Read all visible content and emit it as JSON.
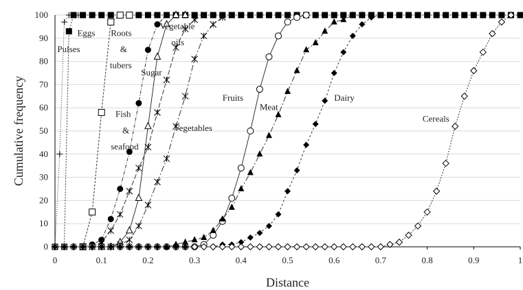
{
  "chart_data": {
    "type": "line",
    "xlabel": "Distance",
    "ylabel": "Cumulative frequency",
    "xlim": [
      0,
      1
    ],
    "ylim": [
      0,
      100
    ],
    "x_ticks": [
      0,
      0.1,
      0.2,
      0.3,
      0.4,
      0.5,
      0.6,
      0.7,
      0.8,
      0.9,
      1
    ],
    "x_tick_labels": [
      "0",
      "0.1",
      "0.2",
      "0.3",
      "0.4",
      "0.5",
      "0.6",
      "0.7",
      "0.8",
      "0.9",
      "1"
    ],
    "y_ticks": [
      0,
      10,
      20,
      30,
      40,
      50,
      60,
      70,
      80,
      90,
      100
    ],
    "y_tick_labels": [
      "0",
      "10",
      "20",
      "30",
      "40",
      "50",
      "60",
      "70",
      "80",
      "90",
      "100"
    ],
    "grid": "horizontal",
    "legend": "inline labels",
    "series": [
      {
        "name": "Pulses",
        "marker": "plus",
        "dash": "1,2",
        "points": [
          [
            0,
            0
          ],
          [
            0.01,
            40
          ],
          [
            0.02,
            97
          ],
          [
            0.03,
            100
          ],
          [
            0.04,
            100
          ],
          [
            0.05,
            100
          ],
          [
            0.06,
            100
          ]
        ]
      },
      {
        "name": "Eggs",
        "marker": "filled-square",
        "dash": "2,2",
        "points": [
          [
            0,
            0
          ],
          [
            0.02,
            0
          ],
          [
            0.03,
            93
          ],
          [
            0.04,
            100
          ],
          [
            0.06,
            100
          ],
          [
            0.08,
            100
          ],
          [
            0.1,
            100
          ],
          [
            0.12,
            100
          ],
          [
            0.14,
            100
          ],
          [
            0.16,
            100
          ],
          [
            0.18,
            100
          ],
          [
            0.2,
            100
          ],
          [
            0.22,
            100
          ],
          [
            0.24,
            100
          ],
          [
            0.26,
            100
          ],
          [
            0.28,
            100
          ],
          [
            0.3,
            100
          ],
          [
            0.32,
            100
          ],
          [
            0.34,
            100
          ],
          [
            0.36,
            100
          ],
          [
            0.38,
            100
          ],
          [
            0.4,
            100
          ],
          [
            0.42,
            100
          ],
          [
            0.44,
            100
          ],
          [
            0.46,
            100
          ],
          [
            0.48,
            100
          ],
          [
            0.5,
            100
          ],
          [
            0.52,
            100
          ],
          [
            0.54,
            100
          ],
          [
            0.56,
            100
          ],
          [
            0.58,
            100
          ],
          [
            0.6,
            100
          ],
          [
            0.62,
            100
          ],
          [
            0.64,
            100
          ],
          [
            0.66,
            100
          ],
          [
            0.68,
            100
          ],
          [
            0.7,
            100
          ],
          [
            0.72,
            100
          ],
          [
            0.74,
            100
          ],
          [
            0.76,
            100
          ],
          [
            0.78,
            100
          ],
          [
            0.8,
            100
          ],
          [
            0.82,
            100
          ],
          [
            0.84,
            100
          ],
          [
            0.86,
            100
          ],
          [
            0.88,
            100
          ],
          [
            0.9,
            100
          ],
          [
            0.92,
            100
          ],
          [
            0.94,
            100
          ],
          [
            0.96,
            100
          ],
          [
            0.98,
            100
          ],
          [
            1,
            100
          ]
        ]
      },
      {
        "name": "Roots & tubers",
        "marker": "open-square",
        "dash": "3,2",
        "points": [
          [
            0.06,
            0
          ],
          [
            0.08,
            15
          ],
          [
            0.1,
            58
          ],
          [
            0.12,
            97
          ],
          [
            0.14,
            100
          ],
          [
            0.16,
            100
          ]
        ]
      },
      {
        "name": "Sugar",
        "marker": "filled-circle",
        "dash": "5,2,1,2",
        "points": [
          [
            0.06,
            0
          ],
          [
            0.08,
            1
          ],
          [
            0.1,
            3
          ],
          [
            0.12,
            12
          ],
          [
            0.14,
            25
          ],
          [
            0.16,
            41
          ],
          [
            0.18,
            62
          ],
          [
            0.2,
            85
          ],
          [
            0.22,
            96
          ],
          [
            0.24,
            100
          ],
          [
            0.26,
            100
          ]
        ]
      },
      {
        "name": "Fish & seafood",
        "marker": "open-triangle",
        "dash": "",
        "points": [
          [
            0.1,
            0
          ],
          [
            0.12,
            0
          ],
          [
            0.14,
            2
          ],
          [
            0.16,
            7
          ],
          [
            0.18,
            21
          ],
          [
            0.2,
            52
          ],
          [
            0.22,
            82
          ],
          [
            0.24,
            96
          ],
          [
            0.26,
            100
          ],
          [
            0.28,
            100
          ]
        ]
      },
      {
        "name": "Vegetable oils",
        "marker": "star",
        "dash": "7,3",
        "points": [
          [
            0.08,
            0
          ],
          [
            0.1,
            2
          ],
          [
            0.12,
            7
          ],
          [
            0.14,
            14
          ],
          [
            0.16,
            24
          ],
          [
            0.18,
            34
          ],
          [
            0.2,
            43
          ],
          [
            0.22,
            58
          ],
          [
            0.24,
            72
          ],
          [
            0.26,
            86
          ],
          [
            0.28,
            94
          ],
          [
            0.3,
            98
          ],
          [
            0.32,
            100
          ]
        ]
      },
      {
        "name": "Vegetables",
        "marker": "star",
        "dash": "9,3,2,3",
        "points": [
          [
            0.1,
            0
          ],
          [
            0.12,
            0
          ],
          [
            0.14,
            1
          ],
          [
            0.16,
            3
          ],
          [
            0.18,
            9
          ],
          [
            0.2,
            18
          ],
          [
            0.22,
            28
          ],
          [
            0.24,
            38
          ],
          [
            0.26,
            52
          ],
          [
            0.28,
            65
          ],
          [
            0.3,
            81
          ],
          [
            0.32,
            91
          ],
          [
            0.34,
            96
          ],
          [
            0.36,
            99
          ],
          [
            0.38,
            100
          ]
        ]
      },
      {
        "name": "Fruits",
        "marker": "open-circle",
        "dash": "",
        "points": [
          [
            0,
            0
          ],
          [
            0.02,
            0
          ],
          [
            0.04,
            0
          ],
          [
            0.06,
            0
          ],
          [
            0.08,
            0
          ],
          [
            0.1,
            0
          ],
          [
            0.12,
            0
          ],
          [
            0.14,
            0
          ],
          [
            0.16,
            0
          ],
          [
            0.18,
            0
          ],
          [
            0.2,
            0
          ],
          [
            0.22,
            0
          ],
          [
            0.24,
            0
          ],
          [
            0.26,
            0
          ],
          [
            0.28,
            0
          ],
          [
            0.3,
            0
          ],
          [
            0.32,
            1
          ],
          [
            0.34,
            5
          ],
          [
            0.36,
            11
          ],
          [
            0.38,
            21
          ],
          [
            0.4,
            34
          ],
          [
            0.42,
            50
          ],
          [
            0.44,
            68
          ],
          [
            0.46,
            82
          ],
          [
            0.48,
            91
          ],
          [
            0.5,
            97
          ],
          [
            0.52,
            99
          ],
          [
            0.54,
            100
          ]
        ]
      },
      {
        "name": "Meat",
        "marker": "filled-triangle",
        "dash": "8,3,2,3",
        "points": [
          [
            0.24,
            0
          ],
          [
            0.26,
            1
          ],
          [
            0.28,
            2
          ],
          [
            0.3,
            3
          ],
          [
            0.32,
            4
          ],
          [
            0.34,
            7
          ],
          [
            0.36,
            12
          ],
          [
            0.38,
            17
          ],
          [
            0.4,
            25
          ],
          [
            0.42,
            32
          ],
          [
            0.44,
            40
          ],
          [
            0.46,
            48
          ],
          [
            0.48,
            57
          ],
          [
            0.5,
            67
          ],
          [
            0.52,
            76
          ],
          [
            0.54,
            85
          ],
          [
            0.56,
            88
          ],
          [
            0.58,
            93
          ],
          [
            0.6,
            97
          ],
          [
            0.62,
            98
          ],
          [
            0.64,
            100
          ],
          [
            0.66,
            100
          ]
        ]
      },
      {
        "name": "Dairy",
        "marker": "filled-diamond",
        "dash": "3,3",
        "points": [
          [
            0,
            0
          ],
          [
            0.02,
            0
          ],
          [
            0.04,
            0
          ],
          [
            0.06,
            0
          ],
          [
            0.08,
            0
          ],
          [
            0.1,
            0
          ],
          [
            0.12,
            0
          ],
          [
            0.14,
            0
          ],
          [
            0.16,
            0
          ],
          [
            0.18,
            0
          ],
          [
            0.2,
            0
          ],
          [
            0.22,
            0
          ],
          [
            0.24,
            0
          ],
          [
            0.26,
            0
          ],
          [
            0.28,
            0
          ],
          [
            0.3,
            0
          ],
          [
            0.32,
            0
          ],
          [
            0.34,
            0
          ],
          [
            0.36,
            1
          ],
          [
            0.38,
            1
          ],
          [
            0.4,
            2
          ],
          [
            0.42,
            4
          ],
          [
            0.44,
            6
          ],
          [
            0.46,
            9
          ],
          [
            0.48,
            14
          ],
          [
            0.5,
            24
          ],
          [
            0.52,
            33
          ],
          [
            0.54,
            44
          ],
          [
            0.56,
            53
          ],
          [
            0.58,
            63
          ],
          [
            0.6,
            75
          ],
          [
            0.62,
            84
          ],
          [
            0.64,
            91
          ],
          [
            0.66,
            96
          ],
          [
            0.68,
            99
          ],
          [
            0.7,
            100
          ],
          [
            0.72,
            100
          ]
        ]
      },
      {
        "name": "Cereals",
        "marker": "open-diamond",
        "dash": "2,2",
        "points": [
          [
            0.3,
            0
          ],
          [
            0.32,
            0
          ],
          [
            0.34,
            0
          ],
          [
            0.36,
            0
          ],
          [
            0.38,
            0
          ],
          [
            0.4,
            0
          ],
          [
            0.42,
            0
          ],
          [
            0.44,
            0
          ],
          [
            0.46,
            0
          ],
          [
            0.48,
            0
          ],
          [
            0.5,
            0
          ],
          [
            0.52,
            0
          ],
          [
            0.54,
            0
          ],
          [
            0.56,
            0
          ],
          [
            0.58,
            0
          ],
          [
            0.6,
            0
          ],
          [
            0.62,
            0
          ],
          [
            0.64,
            0
          ],
          [
            0.66,
            0
          ],
          [
            0.68,
            0
          ],
          [
            0.7,
            0
          ],
          [
            0.72,
            1
          ],
          [
            0.74,
            2
          ],
          [
            0.76,
            5
          ],
          [
            0.78,
            9
          ],
          [
            0.8,
            15
          ],
          [
            0.82,
            24
          ],
          [
            0.84,
            36
          ],
          [
            0.86,
            52
          ],
          [
            0.88,
            65
          ],
          [
            0.9,
            76
          ],
          [
            0.92,
            84
          ],
          [
            0.94,
            92
          ],
          [
            0.96,
            97
          ],
          [
            0.98,
            100
          ]
        ]
      }
    ],
    "labels": [
      {
        "text": "Pulses",
        "x": 0.005,
        "y": 84
      },
      {
        "text": "Eggs",
        "x": 0.048,
        "y": 91
      },
      {
        "text": "Roots",
        "x": 0.12,
        "y": 91
      },
      {
        "text": "&",
        "x": 0.14,
        "y": 84
      },
      {
        "text": "tubers",
        "x": 0.118,
        "y": 77
      },
      {
        "text": "Sugar",
        "x": 0.185,
        "y": 74
      },
      {
        "text": "Vegetable",
        "x": 0.225,
        "y": 94
      },
      {
        "text": "oils",
        "x": 0.25,
        "y": 87
      },
      {
        "text": "Fruits",
        "x": 0.36,
        "y": 63
      },
      {
        "text": "Fish",
        "x": 0.13,
        "y": 56
      },
      {
        "text": "&",
        "x": 0.145,
        "y": 49
      },
      {
        "text": "seafood",
        "x": 0.12,
        "y": 42
      },
      {
        "text": "Vegetables",
        "x": 0.255,
        "y": 50
      },
      {
        "text": "Meat",
        "x": 0.44,
        "y": 59
      },
      {
        "text": "Dairy",
        "x": 0.6,
        "y": 63
      },
      {
        "text": "Cereals",
        "x": 0.79,
        "y": 54
      }
    ]
  }
}
